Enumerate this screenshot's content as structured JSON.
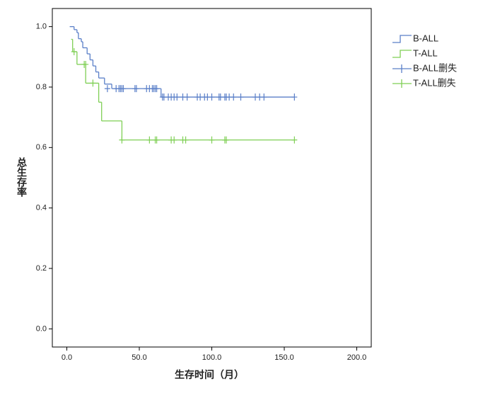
{
  "chart_data": {
    "type": "survival",
    "xlabel": "生存时间（月）",
    "ylabel": "总生存率",
    "xlim": [
      -10,
      210
    ],
    "ylim": [
      -0.06,
      1.06
    ],
    "xticks": [
      {
        "value": 0,
        "label": "0.0"
      },
      {
        "value": 50,
        "label": "50.0"
      },
      {
        "value": 100,
        "label": "100.0"
      },
      {
        "value": 150,
        "label": "150.0"
      },
      {
        "value": 200,
        "label": "200.0"
      }
    ],
    "yticks": [
      {
        "value": 0,
        "label": "0.0"
      },
      {
        "value": 0.2,
        "label": "0.2"
      },
      {
        "value": 0.4,
        "label": "0.4"
      },
      {
        "value": 0.6,
        "label": "0.6"
      },
      {
        "value": 0.8,
        "label": "0.8"
      },
      {
        "value": 1,
        "label": "1.0"
      }
    ],
    "legend": "right",
    "series": [
      {
        "name": "B-ALL",
        "color": "#5a7fc8",
        "style": "step",
        "x": [
          2,
          5,
          7,
          8,
          10,
          11,
          14,
          16,
          18,
          20,
          22,
          26,
          31,
          65,
          157
        ],
        "values": [
          1.0,
          0.99,
          0.98,
          0.96,
          0.95,
          0.93,
          0.91,
          0.89,
          0.87,
          0.85,
          0.83,
          0.81,
          0.795,
          0.767,
          0.767
        ]
      },
      {
        "name": "T-ALL",
        "color": "#7fcf55",
        "style": "step",
        "x": [
          3,
          4,
          7,
          13,
          22,
          24,
          38,
          157
        ],
        "values": [
          0.958,
          0.917,
          0.875,
          0.813,
          0.75,
          0.688,
          0.625,
          0.625
        ]
      },
      {
        "name": "B-ALL删失",
        "color": "#5a7fc8",
        "style": "plus",
        "x": [
          28,
          34,
          36,
          37,
          38,
          39,
          47,
          48,
          55,
          57,
          59,
          60,
          61,
          62,
          66,
          67,
          70,
          72,
          74,
          76,
          80,
          83,
          90,
          92,
          95,
          97,
          100,
          105,
          106,
          109,
          110,
          112,
          115,
          120,
          130,
          133,
          136,
          157
        ],
        "values": [
          0.795,
          0.795,
          0.795,
          0.795,
          0.795,
          0.795,
          0.795,
          0.795,
          0.795,
          0.795,
          0.795,
          0.795,
          0.795,
          0.795,
          0.767,
          0.767,
          0.767,
          0.767,
          0.767,
          0.767,
          0.767,
          0.767,
          0.767,
          0.767,
          0.767,
          0.767,
          0.767,
          0.767,
          0.767,
          0.767,
          0.767,
          0.767,
          0.767,
          0.767,
          0.767,
          0.767,
          0.767,
          0.767
        ]
      },
      {
        "name": "T-ALL删失",
        "color": "#7fcf55",
        "style": "plus",
        "x": [
          5,
          12,
          13,
          18,
          38,
          57,
          61,
          62,
          72,
          74,
          80,
          82,
          100,
          109,
          110,
          157
        ],
        "values": [
          0.917,
          0.875,
          0.875,
          0.813,
          0.625,
          0.625,
          0.625,
          0.625,
          0.625,
          0.625,
          0.625,
          0.625,
          0.625,
          0.625,
          0.625,
          0.625
        ]
      }
    ]
  }
}
